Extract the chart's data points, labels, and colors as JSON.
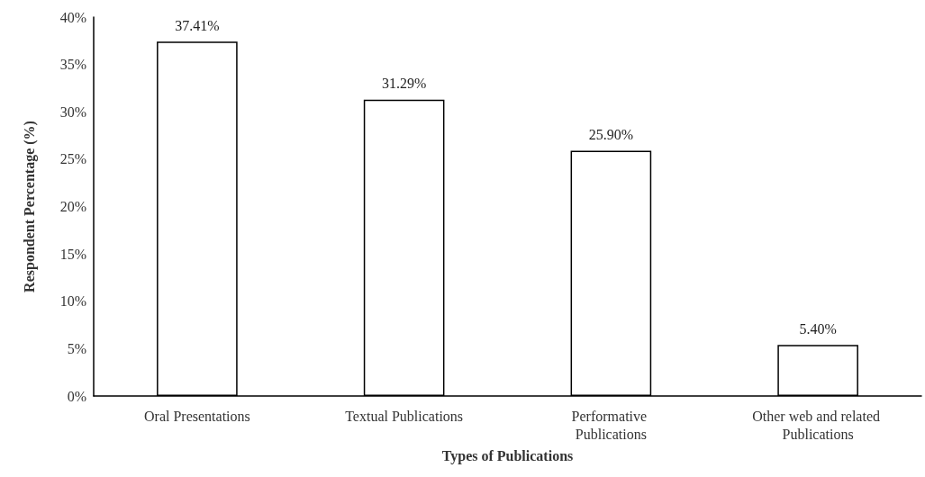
{
  "chart_data": {
    "type": "bar",
    "xlabel": "Types of Publications",
    "ylabel": "Respondent Percentage (%)",
    "categories": [
      "Oral Presentations",
      "Textual Publications",
      "Performative Publications",
      "Other web and related Publications"
    ],
    "values": [
      37.41,
      31.29,
      25.9,
      5.4
    ],
    "value_labels": [
      "37.41%",
      "31.29%",
      "25.90%",
      "5.40%"
    ],
    "color": "#ffffff",
    "ylim": [
      0,
      40
    ],
    "yticks": [
      {
        "value": 0,
        "label": "0%"
      },
      {
        "value": 5,
        "label": "5%"
      },
      {
        "value": 10,
        "label": "10%"
      },
      {
        "value": 15,
        "label": "15%"
      },
      {
        "value": 20,
        "label": "20%"
      },
      {
        "value": 25,
        "label": "25%"
      },
      {
        "value": 30,
        "label": "30%"
      },
      {
        "value": 35,
        "label": "35%"
      },
      {
        "value": 40,
        "label": "40%"
      }
    ],
    "grid": false
  }
}
